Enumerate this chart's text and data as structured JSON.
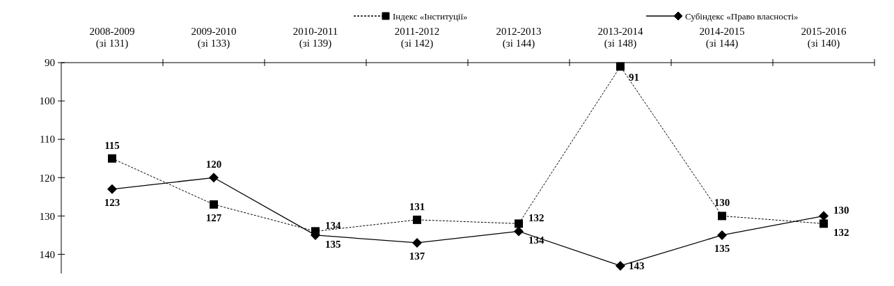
{
  "chart_data": {
    "type": "line",
    "categories": [
      "2008-2009 (зі 131)",
      "2009-2010 (зі 133)",
      "2010-2011 (зі 139)",
      "2011-2012 (зі 142)",
      "2012-2013 (зі 144)",
      "2013-2014 (зі 148)",
      "2014-2015 (зі 144)",
      "2015-2016 (зі 140)"
    ],
    "series": [
      {
        "name": "Індекс «Інституції»",
        "color": "#000000",
        "values": [
          115,
          127,
          134,
          131,
          132,
          91,
          130,
          132
        ],
        "marker": "square",
        "line_style": "dashed"
      },
      {
        "name": "Субіндекс «Право власності»",
        "color": "#000000",
        "values": [
          123,
          120,
          135,
          137,
          134,
          143,
          135,
          130
        ],
        "marker": "diamond",
        "line_style": "solid"
      }
    ],
    "ylim": [
      145,
      90
    ],
    "yticks": [
      90,
      100,
      110,
      120,
      130,
      140
    ],
    "data_labels": true,
    "legend": "top",
    "grid": false
  }
}
